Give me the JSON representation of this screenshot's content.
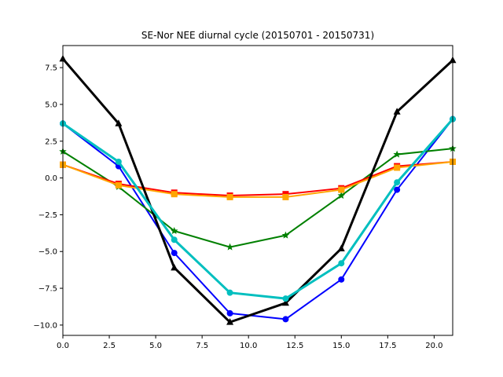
{
  "chart_data": {
    "type": "line",
    "title": "SE-Nor NEE diurnal cycle (20150701 - 20150731)",
    "xlabel": "",
    "ylabel": "",
    "xlim": [
      0,
      21
    ],
    "ylim": [
      -10.7,
      9.0
    ],
    "x_ticks": [
      0,
      2.5,
      5,
      7.5,
      10,
      12.5,
      15,
      17.5,
      20
    ],
    "x_tick_labels": [
      "0.0",
      "2.5",
      "5.0",
      "7.5",
      "10.0",
      "12.5",
      "15.0",
      "17.5",
      "20.0"
    ],
    "y_ticks": [
      -10,
      -7.5,
      -5,
      -2.5,
      0,
      2.5,
      5,
      7.5
    ],
    "y_tick_labels": [
      "−10.0",
      "−7.5",
      "−5.0",
      "−2.5",
      "0.0",
      "2.5",
      "5.0",
      "7.5"
    ],
    "grid": false,
    "x": [
      0,
      3,
      6,
      9,
      12,
      15,
      18,
      21
    ],
    "series": [
      {
        "color": "#0000ff",
        "marker": "circle",
        "width": 2,
        "values": [
          3.7,
          0.8,
          -5.1,
          -9.2,
          -9.6,
          -6.9,
          -0.8,
          4.0
        ]
      },
      {
        "color": "#008000",
        "marker": "star",
        "width": 2,
        "values": [
          1.8,
          -0.6,
          -3.6,
          -4.7,
          -3.9,
          -1.2,
          1.6,
          2.0
        ]
      },
      {
        "color": "#ff0000",
        "marker": "square",
        "width": 2,
        "values": [
          0.9,
          -0.4,
          -1.0,
          -1.2,
          -1.1,
          -0.7,
          0.8,
          1.1
        ]
      },
      {
        "color": "#ffa500",
        "marker": "square",
        "width": 2,
        "values": [
          0.9,
          -0.5,
          -1.1,
          -1.3,
          -1.3,
          -0.8,
          0.7,
          1.1
        ]
      },
      {
        "color": "#000000",
        "marker": "triangle",
        "width": 3,
        "values": [
          8.1,
          3.7,
          -6.1,
          -9.8,
          -8.5,
          -4.8,
          4.5,
          8.0
        ]
      },
      {
        "color": "#00bfbf",
        "marker": "circle",
        "width": 3,
        "values": [
          3.7,
          1.1,
          -4.2,
          -7.8,
          -8.2,
          -5.8,
          -0.3,
          4.0
        ]
      }
    ]
  }
}
